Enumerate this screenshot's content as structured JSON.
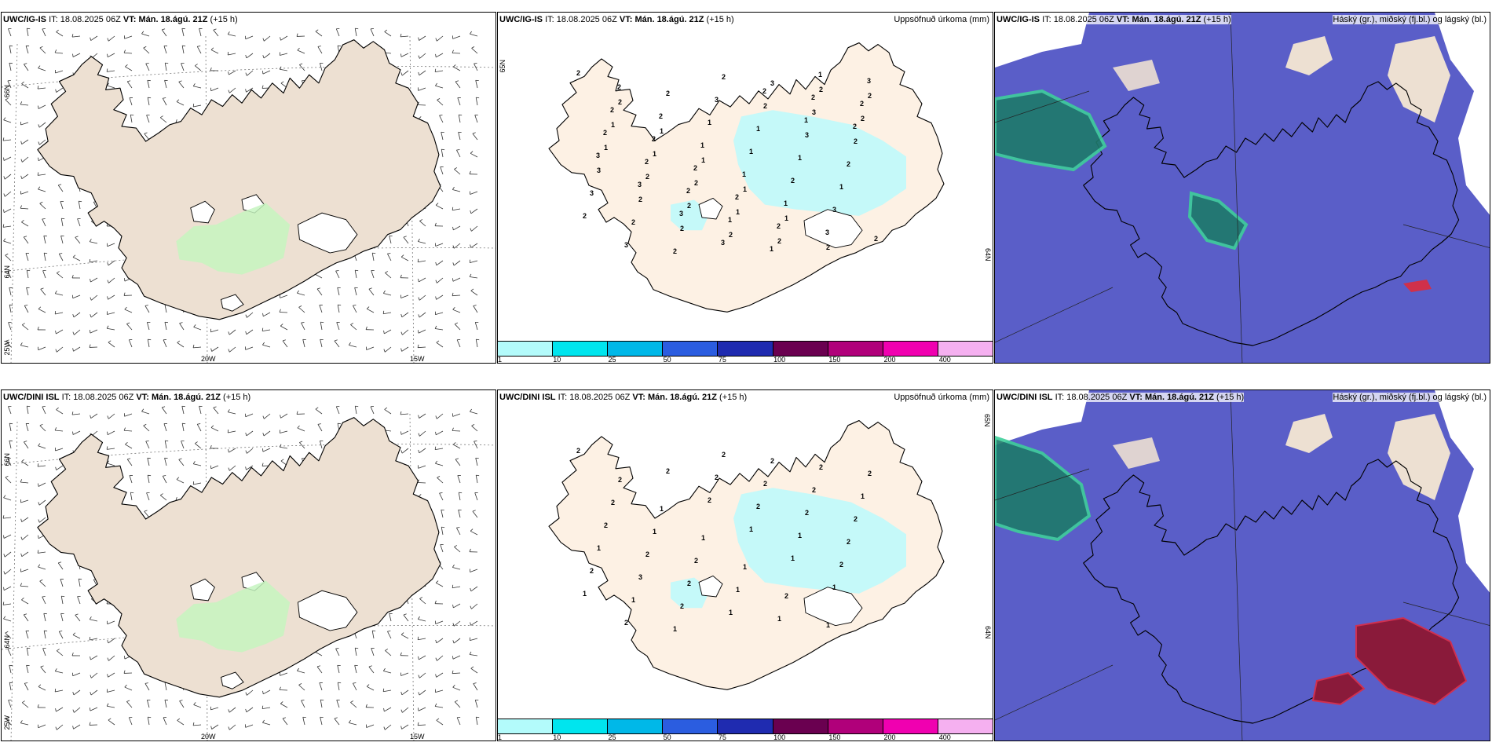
{
  "rows": [
    {
      "model": "UWC/IG-IS",
      "it_label": "IT:",
      "it_value": "18.08.2025 06Z",
      "vt_label": "VT:",
      "vt_value": "Mán. 18.ágú. 21Z",
      "lead": "(+15 h)"
    },
    {
      "model": "UWC/DINI ISL",
      "it_label": "IT:",
      "it_value": "18.08.2025 06Z",
      "vt_label": "VT:",
      "vt_value": "Mán. 18.ágú. 21Z",
      "lead": "(+15 h)"
    }
  ],
  "precip_title": "Uppsöfnuð úrkoma (mm)",
  "cloud_title": "Háský (gr.), miðský (fj.bl.) og lágský (bl.)",
  "axis_labels": {
    "lat66": "66N",
    "lat64": "64N",
    "lat65_right": "65N",
    "lat64_right": "64N",
    "lon20": "20W",
    "lon15": "15W",
    "lon25": "25W"
  },
  "colorbar": {
    "ticks": [
      "1",
      "10",
      "25",
      "50",
      "75",
      "100",
      "150",
      "200",
      "400"
    ],
    "colors": [
      "#b3fbfb",
      "#00e5ee",
      "#00b8e8",
      "#2b5de0",
      "#1f2bb0",
      "#6a0050",
      "#b0007a",
      "#f000b0",
      "#f5b0f0"
    ]
  },
  "colors": {
    "land": "#ede0d2",
    "land_precip": "#fdf1e4",
    "snow": "#ffffff",
    "precip_light": "#bff9fb",
    "wind_green": "#c6f5bf",
    "cloud_high": "#5a5ec8",
    "cloud_mid": "#1e7a6a",
    "cloud_low": "#8a1a3a",
    "coast": "#000000"
  },
  "precip_labels_top": [
    "2",
    "2",
    "1",
    "1",
    "1",
    "1",
    "2",
    "2",
    "1",
    "1",
    "2",
    "1",
    "2",
    "2",
    "2",
    "1",
    "2",
    "2",
    "2",
    "3",
    "3",
    "2",
    "3",
    "2",
    "2",
    "2",
    "2",
    "3",
    "2",
    "3",
    "2",
    "2",
    "3",
    "1",
    "1",
    "1",
    "2",
    "3",
    "2",
    "1",
    "1",
    "2",
    "3",
    "2",
    "2",
    "2",
    "1",
    "1",
    "1",
    "3",
    "3",
    "2",
    "2",
    "2",
    "2",
    "2",
    "1",
    "2",
    "2",
    "2",
    "2",
    "1",
    "1",
    "2",
    "2",
    "3",
    "3",
    "3",
    "3",
    "2",
    "1"
  ],
  "precip_labels_bottom": [
    "2",
    "2",
    "1",
    "1",
    "1",
    "2",
    "1",
    "2",
    "2",
    "1",
    "2",
    "1",
    "1",
    "2",
    "1",
    "2",
    "2",
    "2",
    "1",
    "2",
    "2",
    "2",
    "1",
    "3",
    "2",
    "2",
    "2",
    "2",
    "2",
    "2",
    "1",
    "1",
    "2",
    "2",
    "1",
    "2",
    "1",
    "2",
    "2",
    "2",
    "1",
    "1",
    "1"
  ]
}
